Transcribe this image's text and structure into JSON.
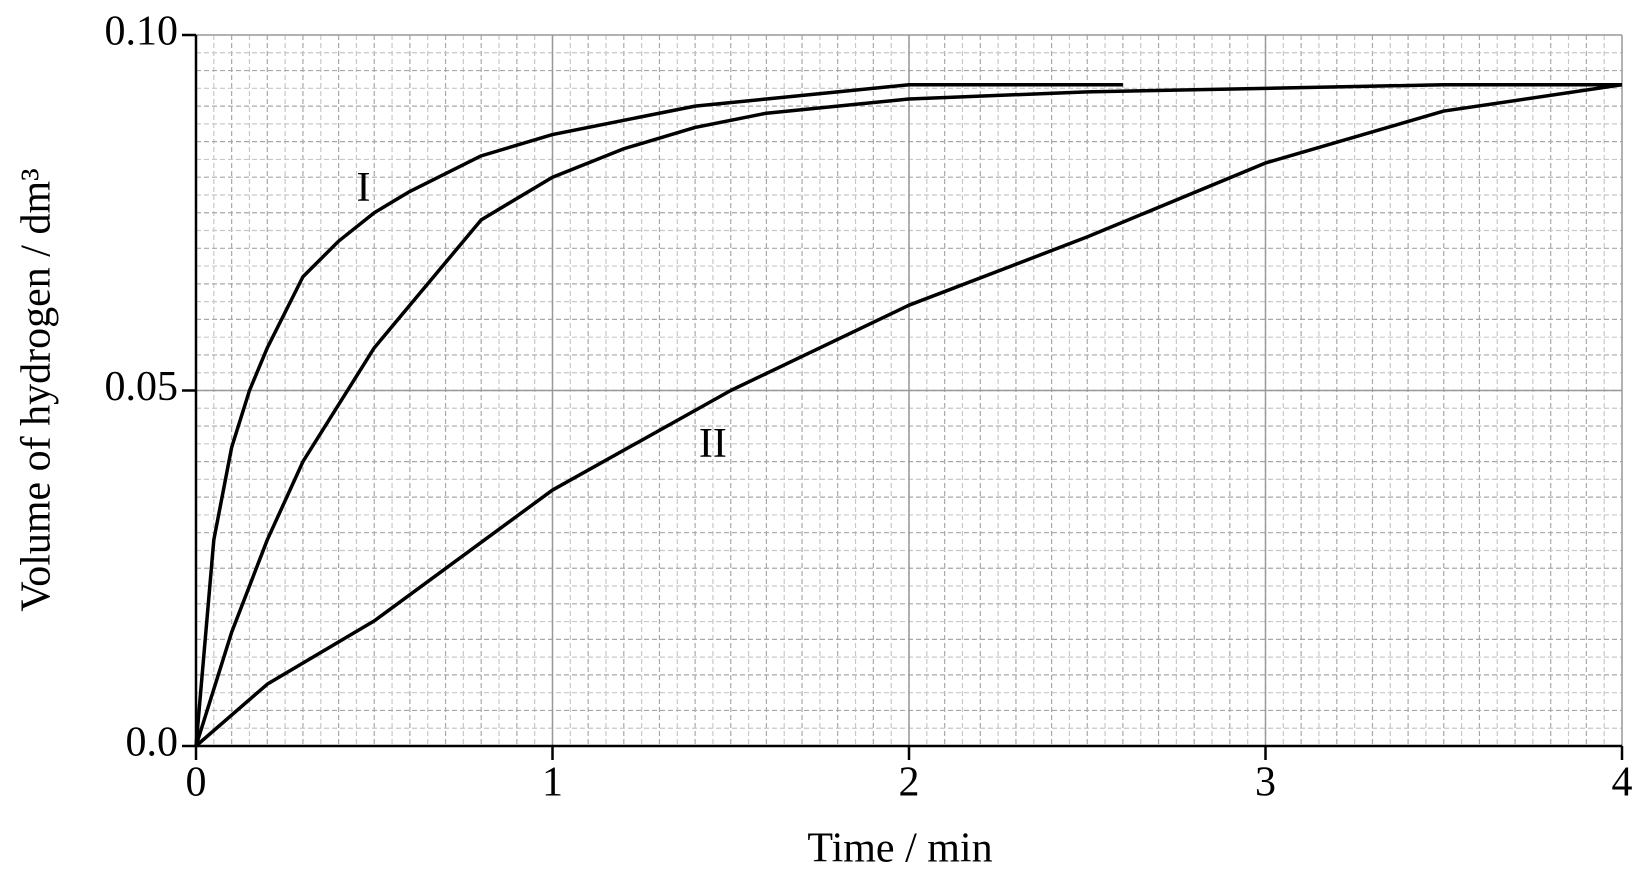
{
  "chart_data": {
    "type": "line",
    "xlabel": "Time / min",
    "ylabel": "Volume of hydrogen / dm³",
    "xlim": [
      0,
      4
    ],
    "xticks": [
      0,
      1,
      2,
      3,
      4
    ],
    "ylim": [
      0,
      0.1
    ],
    "yticks": [
      {
        "value": 0,
        "label": "0.0"
      },
      0.05,
      {
        "value": 0.1,
        "label": "0.10"
      }
    ],
    "grid": true,
    "series": [
      {
        "color": "#000000",
        "x": [
          0,
          0.05,
          0.1,
          0.15,
          0.2,
          0.3,
          0.4,
          0.5,
          0.6,
          0.8,
          1.0,
          1.2,
          1.4,
          1.6,
          1.8,
          2.0,
          2.3,
          2.6
        ],
        "values": [
          0,
          0.029,
          0.042,
          0.05,
          0.056,
          0.066,
          0.071,
          0.075,
          0.078,
          0.083,
          0.086,
          0.088,
          0.09,
          0.091,
          0.092,
          0.093,
          0.093,
          0.093
        ]
      },
      {
        "color": "#000000",
        "x": [
          0,
          0.1,
          0.2,
          0.3,
          0.4,
          0.5,
          0.6,
          0.8,
          1.0,
          1.2,
          1.4,
          1.6,
          2.0,
          2.5,
          3.0,
          3.5,
          4.0
        ],
        "values": [
          0,
          0.016,
          0.029,
          0.04,
          0.048,
          0.056,
          0.062,
          0.074,
          0.08,
          0.084,
          0.087,
          0.089,
          0.091,
          0.092,
          0.0925,
          0.093,
          0.093
        ]
      },
      {
        "color": "#000000",
        "x": [
          0,
          0.2,
          0.5,
          1.0,
          1.5,
          2.0,
          2.5,
          3.0,
          3.5,
          4.0
        ],
        "values": [
          0,
          0.0087,
          0.0176,
          0.036,
          0.05,
          0.062,
          0.0716,
          0.082,
          0.0893,
          0.093
        ]
      }
    ],
    "annotations": [
      "I",
      "II"
    ]
  }
}
